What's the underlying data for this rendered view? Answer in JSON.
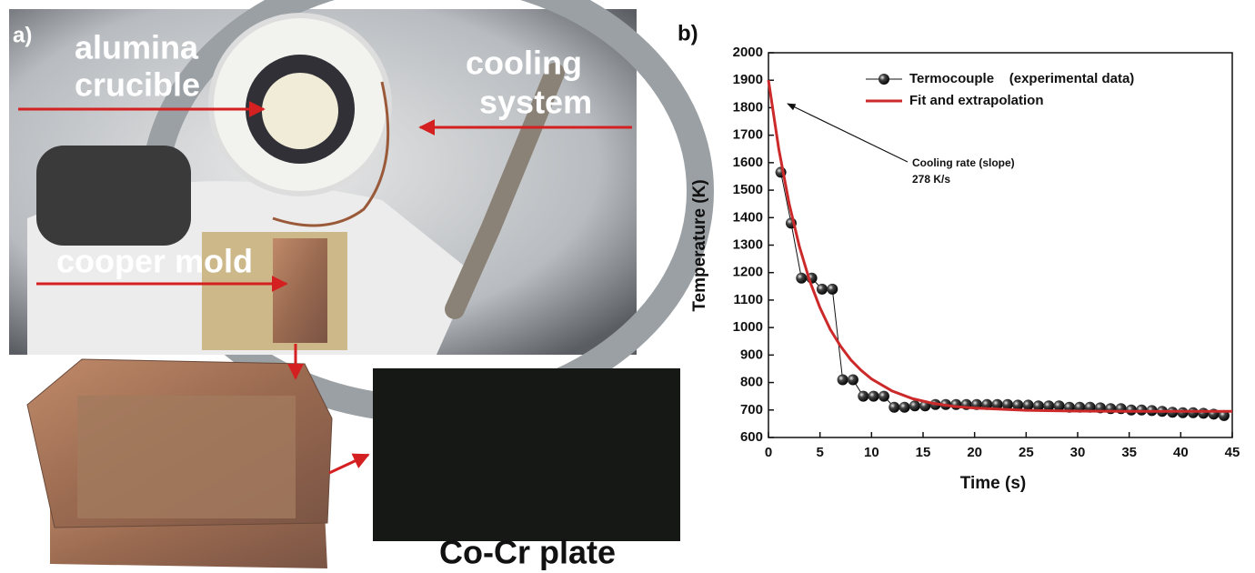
{
  "photo_panel": {
    "label": "a)",
    "crucible_label": [
      "alumina",
      "crucible"
    ],
    "cooling_label": [
      "cooling",
      "system"
    ],
    "mold_label": "cooper mold",
    "plate_label": "Co-Cr plate"
  },
  "chart_data": {
    "type": "line",
    "label": "b)",
    "x_label": "Time (s)",
    "y_label": "Temperature (K)",
    "xlim": [
      0,
      45
    ],
    "xticks": [
      0,
      5,
      10,
      15,
      20,
      25,
      30,
      35,
      40,
      45
    ],
    "ylim": [
      600,
      2000
    ],
    "yticks": [
      600,
      700,
      800,
      900,
      1000,
      1100,
      1200,
      1300,
      1400,
      1500,
      1600,
      1700,
      1800,
      1900,
      2000
    ],
    "annotation": [
      "Cooling rate (slope)",
      "278 K/s"
    ],
    "series": [
      {
        "name": "Termocouple    (experimental data)",
        "color": "#111111",
        "marker": true,
        "x": [
          1.2,
          2.2,
          3.2,
          4.2,
          5.2,
          6.2,
          7.2,
          8.2,
          9.2,
          10.2,
          11.2,
          12.2,
          13.2,
          14.2,
          15.2,
          16.2,
          17.2,
          18.2,
          19.2,
          20.2,
          21.2,
          22.2,
          23.2,
          24.2,
          25.2,
          26.2,
          27.2,
          28.2,
          29.2,
          30.2,
          31.2,
          32.2,
          33.2,
          34.2,
          35.2,
          36.2,
          37.2,
          38.2,
          39.2,
          40.2,
          41.2,
          42.2,
          43.2,
          44.2
        ],
        "values": [
          1565,
          1380,
          1180,
          1180,
          1140,
          1140,
          810,
          810,
          750,
          750,
          750,
          710,
          710,
          715,
          715,
          720,
          720,
          720,
          720,
          720,
          720,
          720,
          720,
          718,
          718,
          715,
          715,
          715,
          710,
          710,
          710,
          708,
          705,
          705,
          700,
          700,
          698,
          695,
          692,
          690,
          690,
          688,
          685,
          680
        ]
      },
      {
        "name": "Fit and extrapolation",
        "color": "#cc2a2a",
        "marker": false,
        "x": [
          0,
          1,
          2,
          3,
          4,
          5,
          6,
          7,
          8,
          9,
          10,
          12,
          14,
          16,
          18,
          20,
          25,
          30,
          35,
          40,
          45
        ],
        "values": [
          1900,
          1650,
          1452,
          1295,
          1170,
          1072,
          993,
          932,
          882,
          844,
          813,
          769,
          741,
          724,
          713,
          707,
          699,
          696,
          695,
          695,
          695
        ]
      }
    ]
  }
}
